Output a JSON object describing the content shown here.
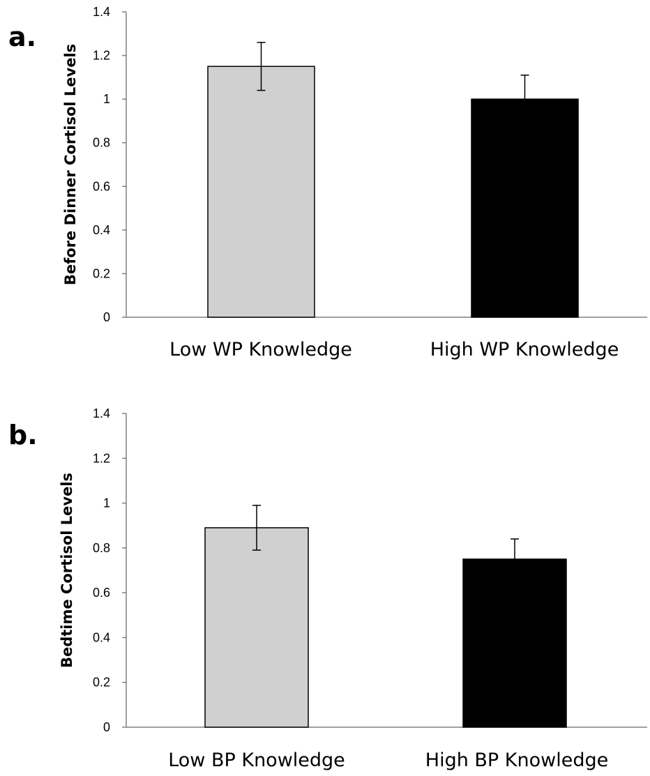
{
  "chart_data": [
    {
      "type": "bar",
      "panel_label": "a.",
      "title": "",
      "xlabel": "",
      "ylabel": "Before Dinner Cortisol Levels",
      "categories": [
        "Low WP Knowledge",
        "High WP Knowledge"
      ],
      "values": [
        1.15,
        1.0
      ],
      "error": [
        0.11,
        0.11
      ],
      "colors": [
        "#d0d0d0",
        "#000000"
      ],
      "ylim": [
        0,
        1.4
      ],
      "yticks": [
        "0",
        "0.2",
        "0.4",
        "0.6",
        "0.8",
        "1",
        "1.2",
        "1.4"
      ],
      "grid": false,
      "legend": "none"
    },
    {
      "type": "bar",
      "panel_label": "b.",
      "title": "",
      "xlabel": "",
      "ylabel": "Bedtime Cortisol Levels",
      "categories": [
        "Low BP Knowledge",
        "High BP Knowledge"
      ],
      "values": [
        0.89,
        0.75
      ],
      "error": [
        0.1,
        0.09
      ],
      "colors": [
        "#d0d0d0",
        "#000000"
      ],
      "ylim": [
        0,
        1.4
      ],
      "yticks": [
        "0",
        "0.2",
        "0.4",
        "0.6",
        "0.8",
        "1",
        "1.2",
        "1.4"
      ],
      "grid": false,
      "legend": "none"
    }
  ]
}
